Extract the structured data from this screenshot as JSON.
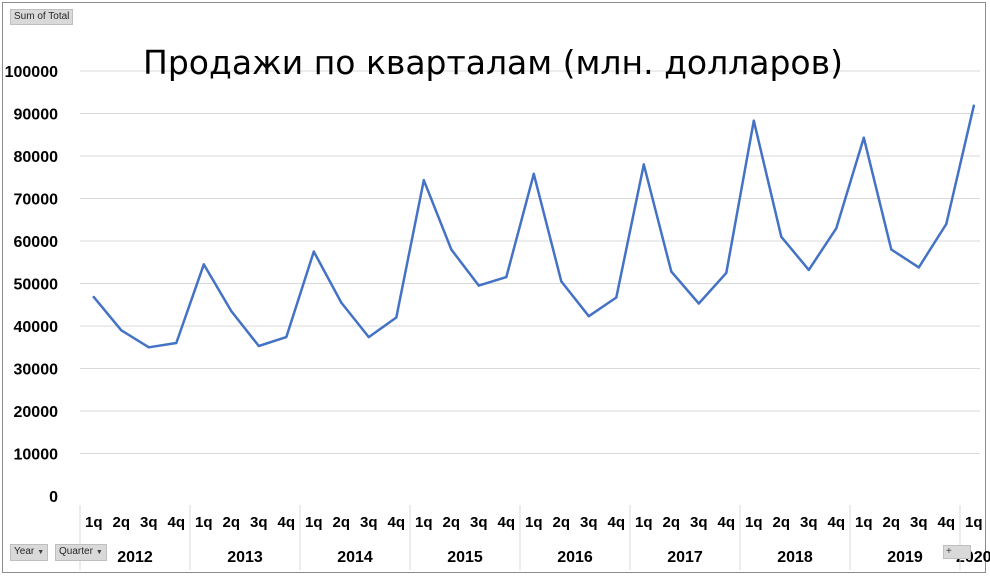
{
  "pivot_buttons": {
    "value_field": "Sum of Total",
    "year_field": "Year",
    "quarter_field": "Quarter",
    "dropdown_glyph": "▼",
    "expand_glyph": "+"
  },
  "colors": {
    "line": "#4472c4",
    "grid": "#d9d9d9",
    "text": "#000000",
    "separator": "#d9d9d9"
  },
  "chart_data": {
    "type": "line",
    "title": "Продажи по кварталам (млн. долларов)",
    "xlabel": "",
    "ylabel": "",
    "ylim": [
      0,
      100000
    ],
    "yticks": [
      0,
      10000,
      20000,
      30000,
      40000,
      50000,
      60000,
      70000,
      80000,
      90000,
      100000
    ],
    "grid": true,
    "legend": "none",
    "groups": [
      {
        "year": "2012",
        "quarters": [
          "1q",
          "2q",
          "3q",
          "4q"
        ]
      },
      {
        "year": "2013",
        "quarters": [
          "1q",
          "2q",
          "3q",
          "4q"
        ]
      },
      {
        "year": "2014",
        "quarters": [
          "1q",
          "2q",
          "3q",
          "4q"
        ]
      },
      {
        "year": "2015",
        "quarters": [
          "1q",
          "2q",
          "3q",
          "4q"
        ]
      },
      {
        "year": "2016",
        "quarters": [
          "1q",
          "2q",
          "3q",
          "4q"
        ]
      },
      {
        "year": "2017",
        "quarters": [
          "1q",
          "2q",
          "3q",
          "4q"
        ]
      },
      {
        "year": "2018",
        "quarters": [
          "1q",
          "2q",
          "3q",
          "4q"
        ]
      },
      {
        "year": "2019",
        "quarters": [
          "1q",
          "2q",
          "3q",
          "4q"
        ]
      },
      {
        "year": "2020",
        "quarters": [
          "1q"
        ]
      }
    ],
    "series": [
      {
        "values": [
          46800,
          39000,
          35000,
          36000,
          54500,
          43500,
          35300,
          37400,
          57500,
          45500,
          37400,
          42000,
          74300,
          58000,
          49500,
          51500,
          75800,
          50500,
          42300,
          46700,
          78000,
          52800,
          45300,
          52500,
          88300,
          61000,
          53200,
          63000,
          84300,
          58000,
          53800,
          64000,
          91800
        ]
      }
    ]
  }
}
